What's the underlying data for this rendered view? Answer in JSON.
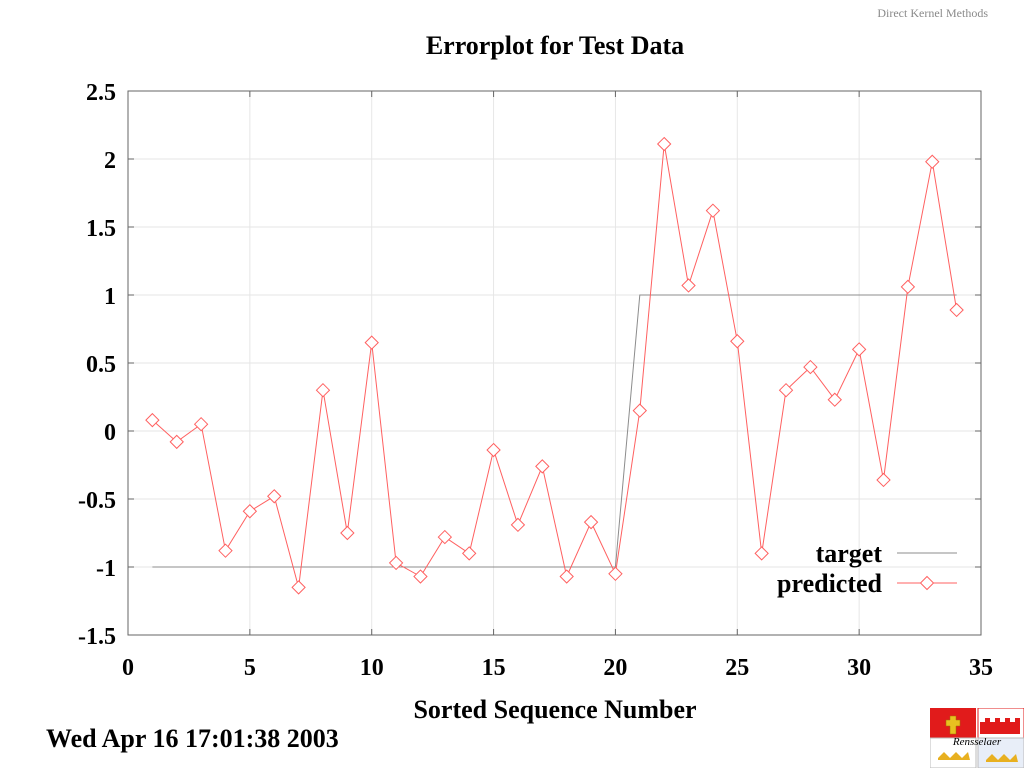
{
  "header": {
    "note": "Direct Kernel Methods"
  },
  "footer": {
    "timestamp": "Wed Apr 16 17:01:38 2003",
    "logo_text": "Rensselaer"
  },
  "colors": {
    "target": "#8c8c8c",
    "predicted": "#ff6060",
    "grid": "#e6e6e6",
    "axis": "#666666"
  },
  "chart_data": {
    "type": "line",
    "title": "Errorplot for Test Data",
    "xlabel": "Sorted Sequence Number",
    "ylabel": "",
    "xlim": [
      0,
      35
    ],
    "ylim": [
      -1.5,
      2.5
    ],
    "xticks": [
      0,
      5,
      10,
      15,
      20,
      25,
      30,
      35
    ],
    "yticks": [
      -1.5,
      -1,
      -0.5,
      0,
      0.5,
      1,
      1.5,
      2,
      2.5
    ],
    "ytick_labels": [
      "-1.5",
      "-1",
      "-0.5",
      "0",
      "0.5",
      "1",
      "1.5",
      "2",
      "2.5"
    ],
    "grid": true,
    "legend_position": "bottom-right",
    "series": [
      {
        "name": "target",
        "marker": "none",
        "x": [
          1,
          2,
          3,
          4,
          5,
          6,
          7,
          8,
          9,
          10,
          11,
          12,
          13,
          14,
          15,
          16,
          17,
          18,
          19,
          20,
          21,
          22,
          23,
          24,
          25,
          26,
          27,
          28,
          29,
          30,
          31,
          32,
          33,
          34
        ],
        "values": [
          -1,
          -1,
          -1,
          -1,
          -1,
          -1,
          -1,
          -1,
          -1,
          -1,
          -1,
          -1,
          -1,
          -1,
          -1,
          -1,
          -1,
          -1,
          -1,
          -1,
          1,
          1,
          1,
          1,
          1,
          1,
          1,
          1,
          1,
          1,
          1,
          1,
          1,
          1
        ]
      },
      {
        "name": "predicted",
        "marker": "diamond",
        "x": [
          1,
          2,
          3,
          4,
          5,
          6,
          7,
          8,
          9,
          10,
          11,
          12,
          13,
          14,
          15,
          16,
          17,
          18,
          19,
          20,
          21,
          22,
          23,
          24,
          25,
          26,
          27,
          28,
          29,
          30,
          31,
          32,
          33,
          34
        ],
        "values": [
          0.08,
          -0.08,
          0.05,
          -0.88,
          -0.59,
          -0.48,
          -1.15,
          0.3,
          -0.75,
          0.65,
          -0.97,
          -1.07,
          -0.78,
          -0.9,
          -0.14,
          -0.69,
          -0.26,
          -1.07,
          -0.67,
          -1.05,
          0.15,
          2.11,
          1.07,
          1.62,
          0.66,
          -0.9,
          0.3,
          0.47,
          0.23,
          0.6,
          -0.36,
          1.06,
          1.98,
          0.89
        ]
      }
    ]
  }
}
